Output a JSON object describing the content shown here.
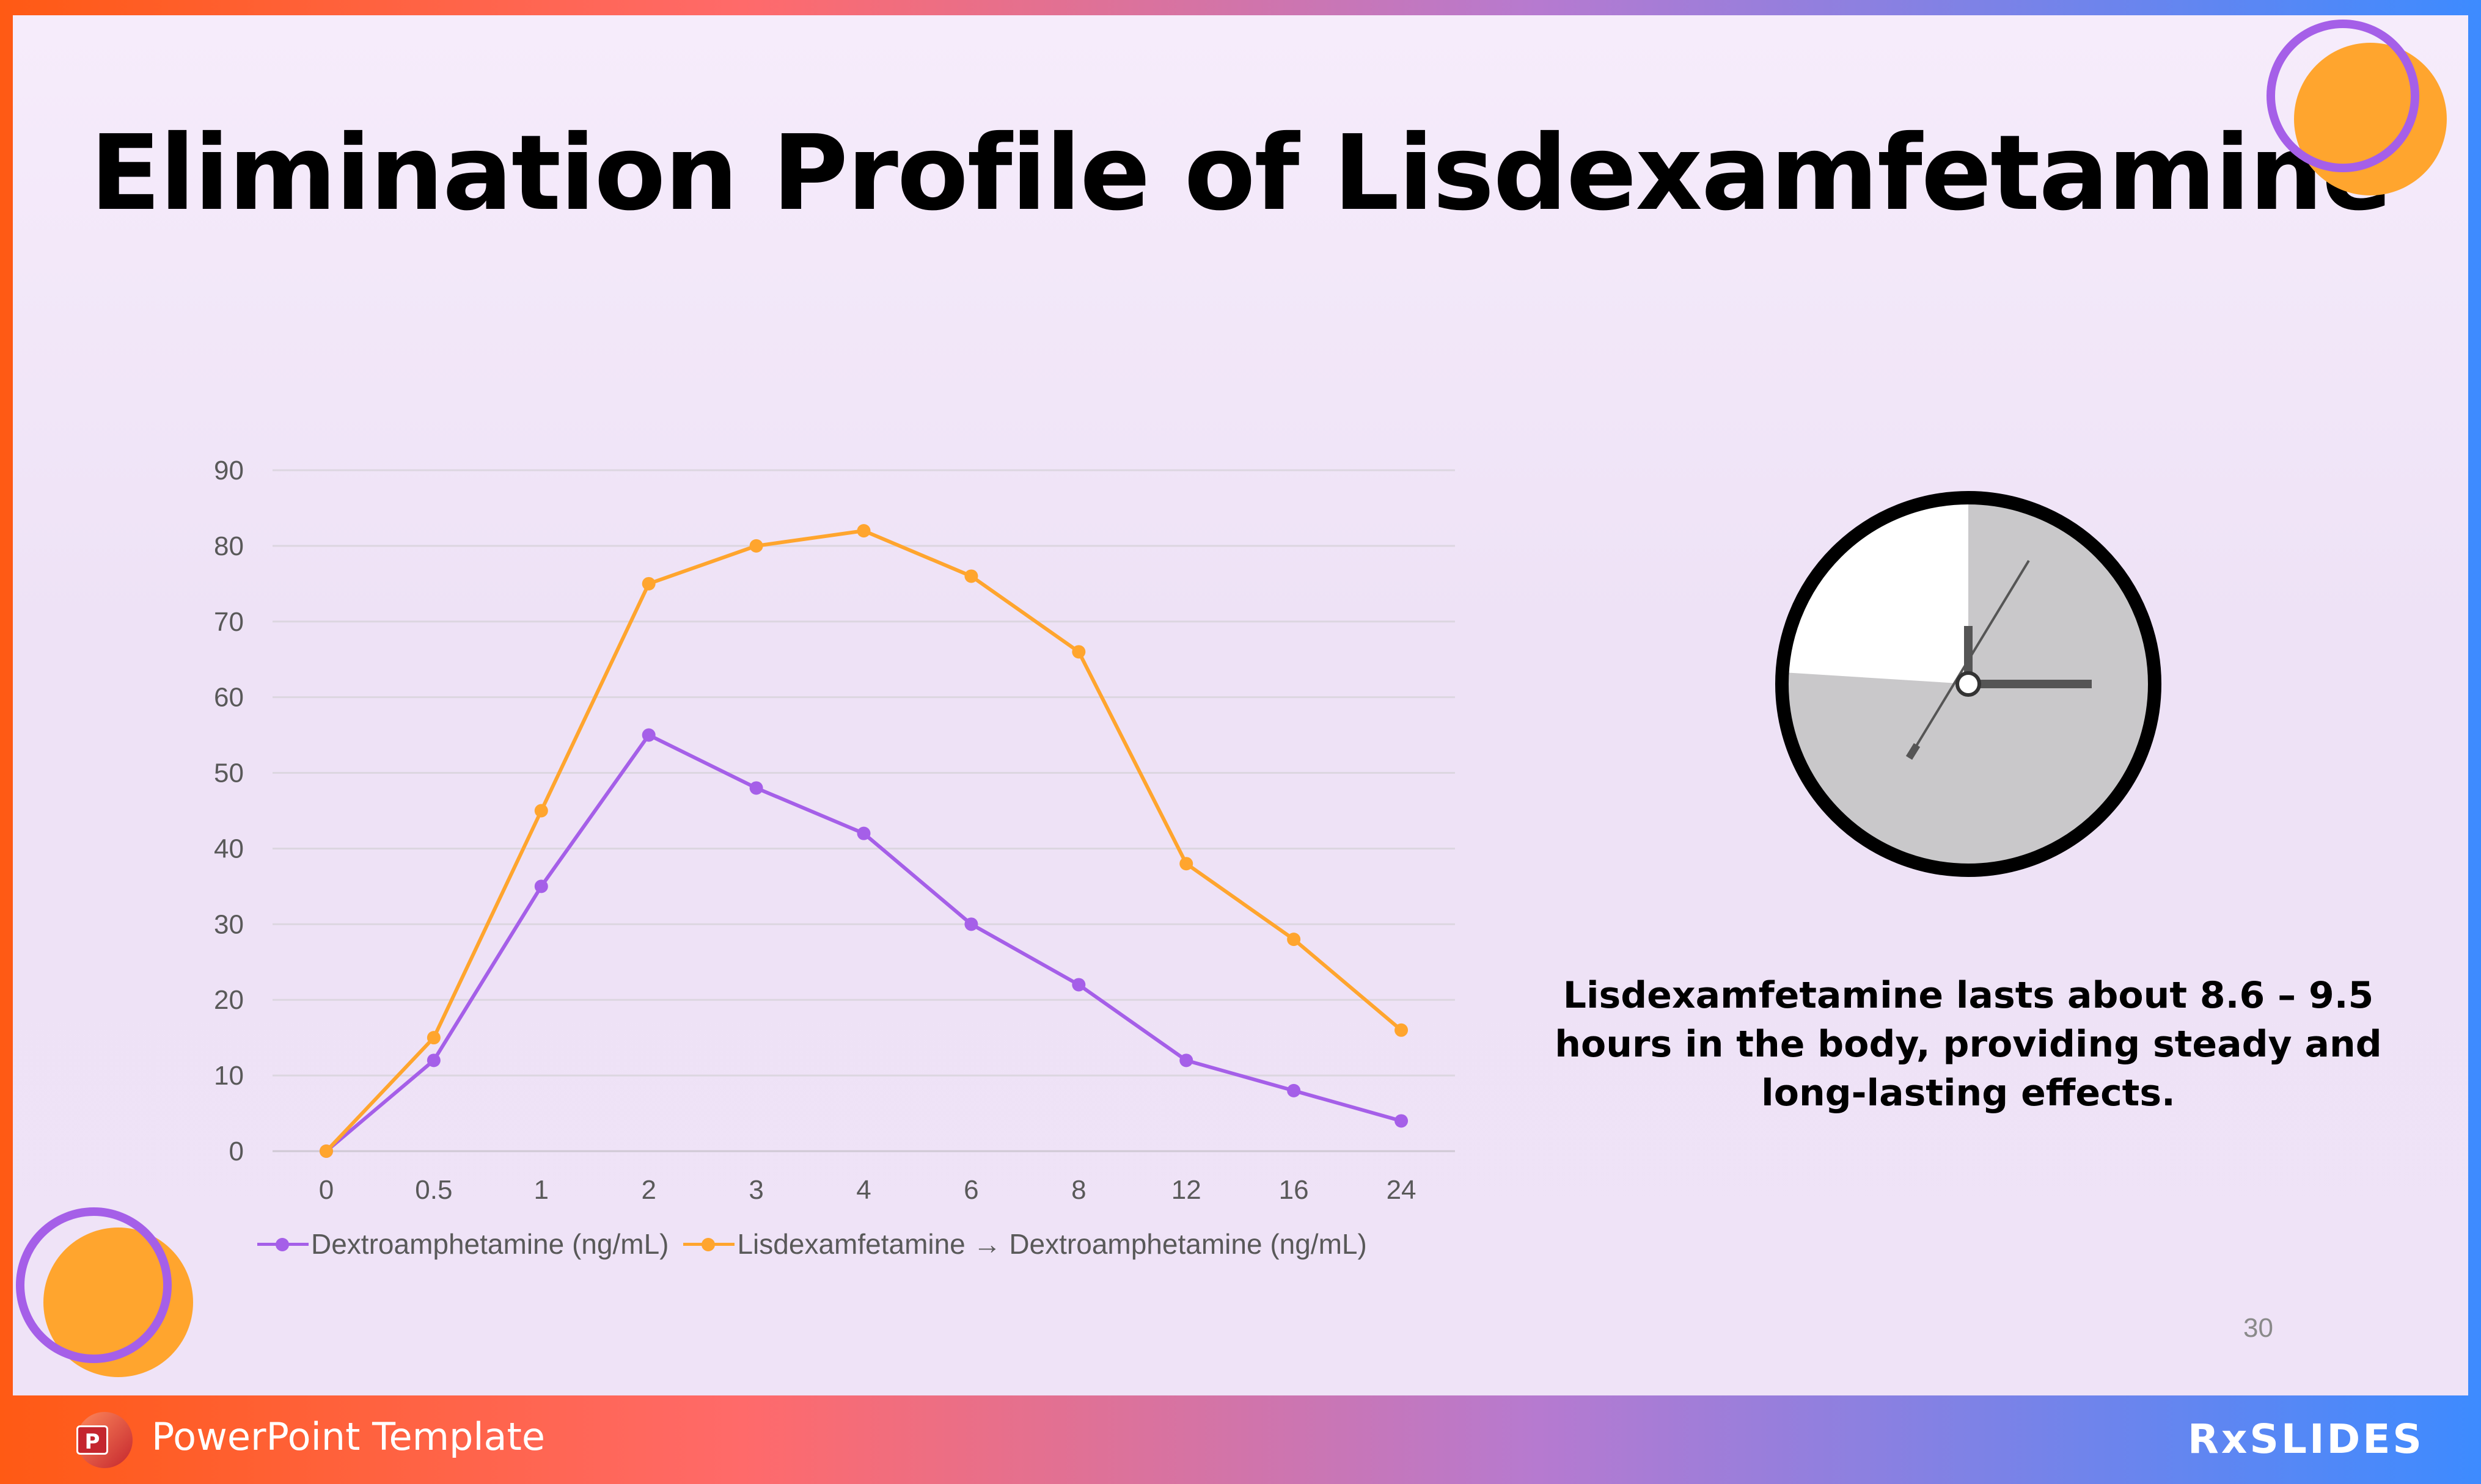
{
  "slide": {
    "title": "Elimination Profile of Lisdexamfetamine",
    "caption": "Lisdexamfetamine lasts about 8.6 – 9.5 hours in the body, providing steady and long-lasting effects.",
    "page_number": "30"
  },
  "footer": {
    "label": "PowerPoint Template",
    "app_icon_letter": "P",
    "brand": "RxSLIDES"
  },
  "clock": {
    "hour_hand": "12",
    "minute_hand": "3",
    "elapsed_fraction": 0.76,
    "face_color": "#c9c8ca",
    "rim_color": "#000000"
  },
  "colors": {
    "series1": "#a55fe8",
    "series2": "#ffa52e",
    "deco_orange": "#ffa52e",
    "deco_purple": "#a55fe8"
  },
  "chart_data": {
    "type": "line",
    "title": "",
    "xlabel": "",
    "ylabel": "",
    "categories": [
      "0",
      "0.5",
      "1",
      "2",
      "3",
      "4",
      "6",
      "8",
      "12",
      "16",
      "24"
    ],
    "y_ticks": [
      0,
      10,
      20,
      30,
      40,
      50,
      60,
      70,
      80,
      90
    ],
    "ylim": [
      0,
      90
    ],
    "grid": "horizontal",
    "legend_position": "bottom",
    "series": [
      {
        "name": "Dextroamphetamine (ng/mL)",
        "color": "#a55fe8",
        "values": [
          0,
          12,
          35,
          55,
          48,
          42,
          30,
          22,
          12,
          8,
          4
        ]
      },
      {
        "name": "Lisdexamfetamine → Dextroamphetamine (ng/mL)",
        "color": "#ffa52e",
        "values": [
          0,
          15,
          45,
          75,
          80,
          82,
          76,
          66,
          38,
          28,
          16
        ]
      }
    ]
  }
}
